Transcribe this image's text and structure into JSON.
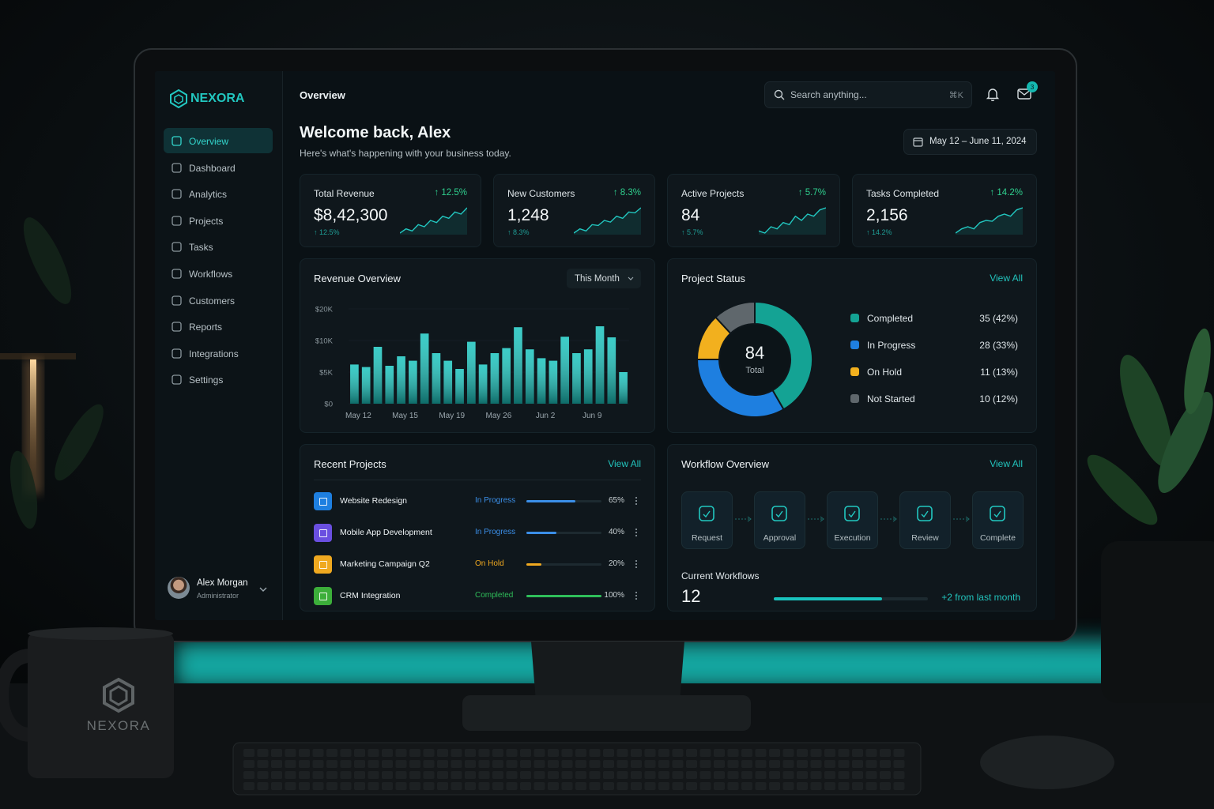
{
  "brand": "NEXORA",
  "scene": {
    "mug_text": "NEXORA"
  },
  "nav": [
    "Overview",
    "Dashboard",
    "Analytics",
    "Projects",
    "Tasks",
    "Workflows",
    "Customers",
    "Reports",
    "Integrations",
    "Settings"
  ],
  "user": {
    "name": "Alex Morgan",
    "role": "Administrator"
  },
  "header": {
    "page": "Overview",
    "search_placeholder": "Search anything...",
    "shortcut": "⌘K",
    "badge": "3"
  },
  "welcome": {
    "title": "Welcome back, Alex",
    "subtitle": "Here's what's happening with your business today.",
    "date_range": "May 12 – June 11, 2024"
  },
  "kpis": [
    {
      "label": "Total Revenue",
      "value": "$8,42,300",
      "change": "↑ 12.5%",
      "sub": "↑ 12.5%",
      "trend": [
        3,
        4,
        3.5,
        5,
        4.5,
        6,
        5.5,
        7,
        6.5,
        8,
        7.5,
        9
      ]
    },
    {
      "label": "New Customers",
      "value": "1,248",
      "change": "↑ 8.3%",
      "sub": "↑ 8.3%",
      "trend": [
        2,
        3,
        2.5,
        4,
        3.8,
        5,
        4.6,
        6,
        5.5,
        7,
        6.8,
        8
      ]
    },
    {
      "label": "Active Projects",
      "value": "84",
      "change": "↑ 5.7%",
      "sub": "↑ 5.7%",
      "trend": [
        3,
        2.5,
        4,
        3.5,
        5,
        4.5,
        6.5,
        5.5,
        7,
        6.5,
        8,
        8.5
      ]
    },
    {
      "label": "Tasks Completed",
      "value": "2,156",
      "change": "↑ 14.2%",
      "sub": "↑ 14.2%",
      "trend": [
        2,
        3,
        3.5,
        3,
        4.5,
        5,
        4.8,
        6,
        6.5,
        6,
        7.5,
        8
      ]
    }
  ],
  "chart_data": [
    {
      "type": "bar",
      "title": "Revenue Overview",
      "filter": "This Month",
      "categories": [
        "May 12",
        null,
        null,
        null,
        "May 15",
        null,
        null,
        null,
        "May 19",
        null,
        null,
        null,
        "May 26",
        null,
        null,
        null,
        "Jun 2",
        null,
        null,
        null,
        "Jun 9",
        null,
        null,
        null
      ],
      "values": [
        6200,
        5800,
        9000,
        6000,
        7500,
        6800,
        12200,
        8000,
        6800,
        5500,
        9800,
        6200,
        8000,
        8800,
        14200,
        8600,
        7200,
        6800,
        11200,
        8000,
        8600,
        14500,
        11000,
        5000
      ],
      "color": "#19c3bd",
      "ylim": [
        0,
        20000
      ],
      "yticks": [
        {
          "value": 0,
          "label": "$0"
        },
        {
          "value": 5000,
          "label": "$5K"
        },
        {
          "value": 10000,
          "label": "$10K"
        },
        {
          "value": 20000,
          "label": "$20K"
        }
      ]
    },
    {
      "type": "pie",
      "donut": true,
      "title": "Project Status",
      "link": "View All",
      "center_value": 84,
      "center_label": "Total",
      "categories": [
        "Completed",
        "In Progress",
        "On Hold",
        "Not Started"
      ],
      "values": [
        35,
        28,
        11,
        10
      ],
      "value_labels": [
        "35 (42%)",
        "28 (33%)",
        "11 (13%)",
        "10 (12%)"
      ],
      "colors": [
        "#14a394",
        "#1e7fe0",
        "#f2b01e",
        "#5f676c"
      ]
    }
  ],
  "recent_projects": {
    "title": "Recent Projects",
    "link": "View All",
    "rows": [
      {
        "name": "Website Redesign",
        "status": "In Progress",
        "progress": 65,
        "progress_label": "65%",
        "icon_color": "#1e7fe0",
        "status_color": "#3b8fe8"
      },
      {
        "name": "Mobile App Development",
        "status": "In Progress",
        "progress": 40,
        "progress_label": "40%",
        "icon_color": "#6a4fe0",
        "status_color": "#3b8fe8"
      },
      {
        "name": "Marketing Campaign Q2",
        "status": "On Hold",
        "progress": 20,
        "progress_label": "20%",
        "icon_color": "#f0a920",
        "status_color": "#f0a920"
      },
      {
        "name": "CRM Integration",
        "status": "Completed",
        "progress": 100,
        "progress_label": "100%",
        "icon_color": "#3cae3a",
        "status_color": "#2fbf5a"
      }
    ]
  },
  "workflow": {
    "title": "Workflow Overview",
    "link": "View All",
    "steps": [
      "Request",
      "Approval",
      "Execution",
      "Review",
      "Complete"
    ],
    "current_label": "Current Workflows",
    "current": 12,
    "progress": 70,
    "change": "+2 from last month"
  }
}
